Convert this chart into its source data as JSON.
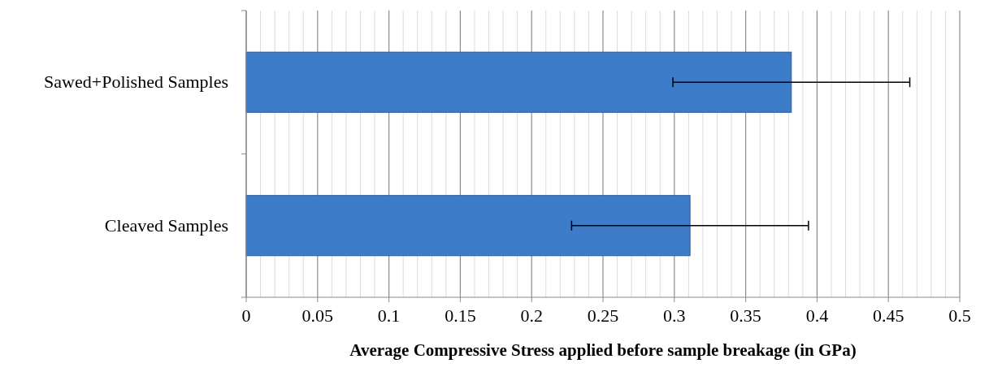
{
  "chart_data": {
    "type": "bar",
    "orientation": "horizontal",
    "xlabel": "Average Compressive Stress applied before sample breakage (in GPa)",
    "categories": [
      "Sawed+Polished Samples",
      "Cleaved Samples"
    ],
    "values": [
      0.382,
      0.311
    ],
    "errors": [
      0.083,
      0.083
    ],
    "color": "#3d7cc9",
    "xlim": [
      0,
      0.5
    ],
    "xticks": [
      0,
      0.05,
      0.1,
      0.15,
      0.2,
      0.25,
      0.3,
      0.35,
      0.4,
      0.45,
      0.5
    ],
    "grid": "x"
  }
}
